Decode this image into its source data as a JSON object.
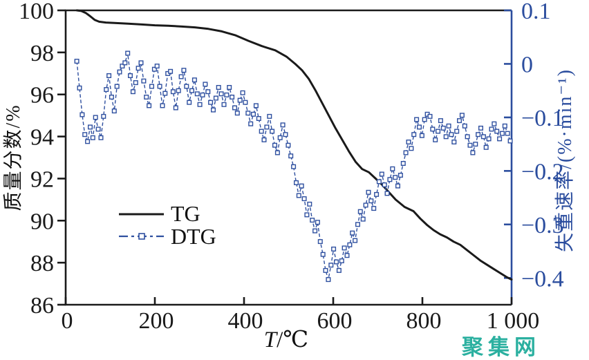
{
  "watermark": "聚集网",
  "chart_data": {
    "type": "line",
    "title": "",
    "xlabel_symbol": "T",
    "xlabel_unit": "/℃",
    "ylabel_left": "质量分数/%",
    "ylabel_right": "失重速率/(%·min⁻¹)",
    "axes": {
      "xlim": [
        0,
        1000
      ],
      "xticks": [
        0,
        200,
        400,
        600,
        800,
        1000
      ],
      "xtick_labels": [
        "0",
        "200",
        "400",
        "600",
        "800",
        "1 000"
      ],
      "ylim_left": [
        86,
        100
      ],
      "yticks_left": [
        86,
        88,
        90,
        92,
        94,
        96,
        98,
        100
      ],
      "ytick_labels_left": [
        "86",
        "88",
        "90",
        "92",
        "94",
        "96",
        "98",
        "100"
      ],
      "ylim_right": [
        -0.45,
        0.1
      ],
      "yticks_right": [
        0.1,
        0,
        -0.1,
        -0.2,
        -0.3,
        -0.4
      ],
      "ytick_labels_right": [
        "0.1",
        "0",
        "−0.1",
        "−0.2",
        "−0.3",
        "−0.4"
      ],
      "grid": false,
      "legend_position": "inside-left-middle"
    },
    "colors": {
      "tg": "#1a1a1a",
      "dtg": "#2e4f9f",
      "right_axis": "#2b4d9e",
      "watermark": "#2bb0a0"
    },
    "legend": [
      {
        "label": "TG",
        "line": "solid",
        "color": "#1a1a1a",
        "marker": "none"
      },
      {
        "label": "DTG",
        "line": "dash-dot",
        "color": "#2e4f9f",
        "marker": "open-square"
      }
    ],
    "series": [
      {
        "name": "TG",
        "axis": "left",
        "points": [
          [
            25,
            100
          ],
          [
            35,
            99.97
          ],
          [
            45,
            99.88
          ],
          [
            55,
            99.72
          ],
          [
            65,
            99.55
          ],
          [
            75,
            99.46
          ],
          [
            90,
            99.42
          ],
          [
            110,
            99.4
          ],
          [
            140,
            99.37
          ],
          [
            170,
            99.33
          ],
          [
            200,
            99.29
          ],
          [
            230,
            99.27
          ],
          [
            260,
            99.23
          ],
          [
            290,
            99.19
          ],
          [
            320,
            99.12
          ],
          [
            350,
            99.0
          ],
          [
            380,
            98.82
          ],
          [
            410,
            98.55
          ],
          [
            440,
            98.3
          ],
          [
            470,
            98.1
          ],
          [
            495,
            97.8
          ],
          [
            515,
            97.45
          ],
          [
            530,
            97.15
          ],
          [
            545,
            96.75
          ],
          [
            560,
            96.2
          ],
          [
            575,
            95.6
          ],
          [
            590,
            95.0
          ],
          [
            605,
            94.4
          ],
          [
            620,
            93.85
          ],
          [
            635,
            93.3
          ],
          [
            650,
            92.8
          ],
          [
            665,
            92.45
          ],
          [
            680,
            92.3
          ],
          [
            695,
            92.0
          ],
          [
            710,
            91.7
          ],
          [
            725,
            91.35
          ],
          [
            740,
            91.0
          ],
          [
            760,
            90.65
          ],
          [
            780,
            90.45
          ],
          [
            795,
            90.1
          ],
          [
            810,
            89.8
          ],
          [
            825,
            89.55
          ],
          [
            840,
            89.35
          ],
          [
            855,
            89.2
          ],
          [
            870,
            89.0
          ],
          [
            885,
            88.85
          ],
          [
            900,
            88.6
          ],
          [
            915,
            88.35
          ],
          [
            930,
            88.1
          ],
          [
            945,
            87.9
          ],
          [
            960,
            87.7
          ],
          [
            975,
            87.5
          ],
          [
            990,
            87.3
          ],
          [
            1000,
            87.2
          ]
        ]
      },
      {
        "name": "DTG",
        "axis": "right",
        "points": [
          [
            25,
            0.005
          ],
          [
            31,
            -0.045
          ],
          [
            37,
            -0.095
          ],
          [
            43,
            -0.132
          ],
          [
            49,
            -0.145
          ],
          [
            55,
            -0.118
          ],
          [
            61,
            -0.138
          ],
          [
            67,
            -0.1
          ],
          [
            73,
            -0.122
          ],
          [
            79,
            -0.138
          ],
          [
            85,
            -0.098
          ],
          [
            91,
            -0.048
          ],
          [
            97,
            -0.022
          ],
          [
            103,
            -0.062
          ],
          [
            109,
            -0.088
          ],
          [
            115,
            -0.042
          ],
          [
            121,
            -0.015
          ],
          [
            127,
            -0.004
          ],
          [
            133,
            0.002
          ],
          [
            139,
            0.02
          ],
          [
            145,
            -0.022
          ],
          [
            151,
            -0.052
          ],
          [
            157,
            -0.035
          ],
          [
            163,
            -0.008
          ],
          [
            169,
            0.002
          ],
          [
            175,
            -0.032
          ],
          [
            181,
            -0.062
          ],
          [
            187,
            -0.078
          ],
          [
            193,
            -0.042
          ],
          [
            199,
            -0.01
          ],
          [
            205,
            -0.004
          ],
          [
            211,
            -0.042
          ],
          [
            217,
            -0.078
          ],
          [
            223,
            -0.055
          ],
          [
            229,
            -0.018
          ],
          [
            235,
            -0.014
          ],
          [
            241,
            -0.052
          ],
          [
            247,
            -0.082
          ],
          [
            253,
            -0.05
          ],
          [
            259,
            -0.024
          ],
          [
            265,
            -0.012
          ],
          [
            271,
            -0.042
          ],
          [
            277,
            -0.072
          ],
          [
            283,
            -0.05
          ],
          [
            289,
            -0.03
          ],
          [
            295,
            -0.056
          ],
          [
            301,
            -0.076
          ],
          [
            307,
            -0.058
          ],
          [
            313,
            -0.038
          ],
          [
            319,
            -0.052
          ],
          [
            325,
            -0.072
          ],
          [
            331,
            -0.086
          ],
          [
            337,
            -0.064
          ],
          [
            343,
            -0.044
          ],
          [
            349,
            -0.056
          ],
          [
            355,
            -0.076
          ],
          [
            361,
            -0.058
          ],
          [
            367,
            -0.044
          ],
          [
            373,
            -0.062
          ],
          [
            379,
            -0.082
          ],
          [
            385,
            -0.092
          ],
          [
            391,
            -0.068
          ],
          [
            397,
            -0.054
          ],
          [
            403,
            -0.072
          ],
          [
            409,
            -0.092
          ],
          [
            415,
            -0.112
          ],
          [
            421,
            -0.094
          ],
          [
            427,
            -0.078
          ],
          [
            433,
            -0.102
          ],
          [
            439,
            -0.126
          ],
          [
            445,
            -0.142
          ],
          [
            451,
            -0.118
          ],
          [
            457,
            -0.098
          ],
          [
            463,
            -0.126
          ],
          [
            469,
            -0.152
          ],
          [
            475,
            -0.166
          ],
          [
            481,
            -0.138
          ],
          [
            487,
            -0.114
          ],
          [
            493,
            -0.132
          ],
          [
            499,
            -0.152
          ],
          [
            505,
            -0.172
          ],
          [
            511,
            -0.192
          ],
          [
            517,
            -0.222
          ],
          [
            523,
            -0.246
          ],
          [
            529,
            -0.228
          ],
          [
            535,
            -0.252
          ],
          [
            541,
            -0.282
          ],
          [
            547,
            -0.262
          ],
          [
            553,
            -0.292
          ],
          [
            559,
            -0.312
          ],
          [
            565,
            -0.296
          ],
          [
            571,
            -0.332
          ],
          [
            577,
            -0.356
          ],
          [
            583,
            -0.386
          ],
          [
            589,
            -0.403
          ],
          [
            595,
            -0.376
          ],
          [
            601,
            -0.346
          ],
          [
            607,
            -0.37
          ],
          [
            613,
            -0.386
          ],
          [
            619,
            -0.368
          ],
          [
            625,
            -0.344
          ],
          [
            631,
            -0.358
          ],
          [
            637,
            -0.338
          ],
          [
            643,
            -0.316
          ],
          [
            649,
            -0.33
          ],
          [
            655,
            -0.3
          ],
          [
            661,
            -0.276
          ],
          [
            667,
            -0.29
          ],
          [
            673,
            -0.264
          ],
          [
            679,
            -0.24
          ],
          [
            685,
            -0.256
          ],
          [
            691,
            -0.27
          ],
          [
            697,
            -0.244
          ],
          [
            703,
            -0.22
          ],
          [
            709,
            -0.206
          ],
          [
            715,
            -0.226
          ],
          [
            721,
            -0.242
          ],
          [
            727,
            -0.216
          ],
          [
            733,
            -0.196
          ],
          [
            739,
            -0.212
          ],
          [
            745,
            -0.228
          ],
          [
            751,
            -0.208
          ],
          [
            757,
            -0.186
          ],
          [
            763,
            -0.166
          ],
          [
            769,
            -0.146
          ],
          [
            775,
            -0.158
          ],
          [
            781,
            -0.132
          ],
          [
            787,
            -0.104
          ],
          [
            793,
            -0.118
          ],
          [
            799,
            -0.134
          ],
          [
            805,
            -0.104
          ],
          [
            811,
            -0.094
          ],
          [
            817,
            -0.098
          ],
          [
            823,
            -0.122
          ],
          [
            829,
            -0.142
          ],
          [
            835,
            -0.126
          ],
          [
            841,
            -0.106
          ],
          [
            847,
            -0.12
          ],
          [
            853,
            -0.136
          ],
          [
            859,
            -0.116
          ],
          [
            865,
            -0.132
          ],
          [
            871,
            -0.146
          ],
          [
            877,
            -0.126
          ],
          [
            883,
            -0.106
          ],
          [
            889,
            -0.096
          ],
          [
            895,
            -0.116
          ],
          [
            901,
            -0.136
          ],
          [
            907,
            -0.152
          ],
          [
            913,
            -0.166
          ],
          [
            919,
            -0.15
          ],
          [
            925,
            -0.132
          ],
          [
            931,
            -0.12
          ],
          [
            937,
            -0.136
          ],
          [
            943,
            -0.156
          ],
          [
            949,
            -0.14
          ],
          [
            955,
            -0.122
          ],
          [
            961,
            -0.112
          ],
          [
            967,
            -0.126
          ],
          [
            973,
            -0.14
          ],
          [
            979,
            -0.13
          ],
          [
            985,
            -0.116
          ],
          [
            991,
            -0.13
          ],
          [
            997,
            -0.144
          ]
        ]
      }
    ]
  }
}
